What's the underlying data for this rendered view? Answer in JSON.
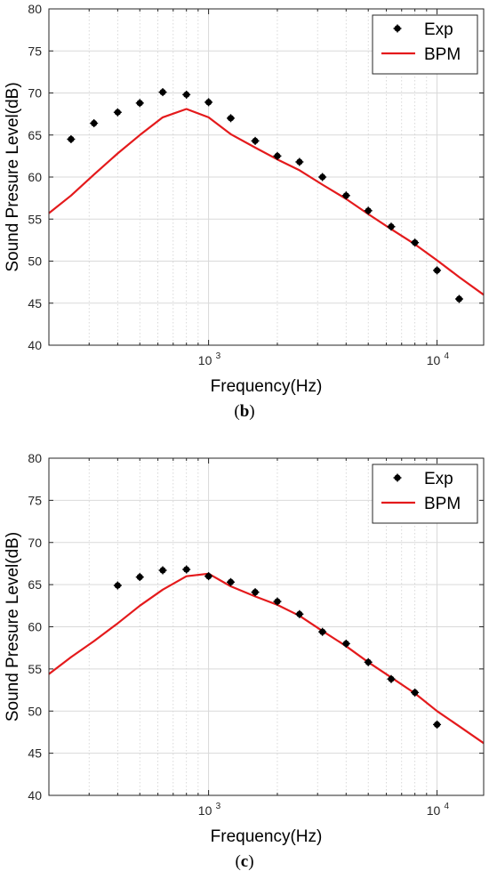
{
  "charts": [
    {
      "id": "b",
      "caption_open": "(",
      "caption_letter": "b",
      "caption_close": ")",
      "chart_data": {
        "type": "scatter",
        "xlabel": "Frequency(Hz)",
        "ylabel": "Sound Presure Level(dB)",
        "xscale": "log",
        "xlim": [
          200,
          16000
        ],
        "ylim": [
          40,
          80
        ],
        "yticks": [
          40,
          45,
          50,
          55,
          60,
          65,
          70,
          75,
          80
        ],
        "xticks": [
          1000,
          10000
        ],
        "grid": true,
        "legend": "top-right",
        "series": [
          {
            "name": "Exp",
            "kind": "markers",
            "color": "#000000",
            "x": [
              250,
              315,
              400,
              500,
              630,
              800,
              1000,
              1250,
              1600,
              2000,
              2500,
              3150,
              4000,
              5000,
              6300,
              8000,
              10000,
              12500
            ],
            "y": [
              64.5,
              66.4,
              67.7,
              68.8,
              70.1,
              69.8,
              68.9,
              67.0,
              64.3,
              62.5,
              61.8,
              60.0,
              57.8,
              56.0,
              54.1,
              52.2,
              48.9,
              45.5
            ]
          },
          {
            "name": "BPM",
            "kind": "line",
            "color": "#e41a1c",
            "x": [
              200,
              250,
              315,
              400,
              500,
              630,
              800,
              1000,
              1250,
              1600,
              2000,
              2500,
              3150,
              4000,
              5000,
              6300,
              8000,
              10000,
              12500,
              16000
            ],
            "y": [
              55.7,
              57.8,
              60.3,
              62.8,
              65.0,
              67.1,
              68.1,
              67.1,
              65.1,
              63.5,
              62.1,
              60.8,
              59.1,
              57.4,
              55.6,
              53.8,
              52.0,
              50.1,
              48.1,
              46.0
            ]
          }
        ]
      }
    },
    {
      "id": "c",
      "caption_open": "(",
      "caption_letter": "c",
      "caption_close": ")",
      "chart_data": {
        "type": "scatter",
        "xlabel": "Frequency(Hz)",
        "ylabel": "Sound Presure Level(dB)",
        "xscale": "log",
        "xlim": [
          200,
          16000
        ],
        "ylim": [
          40,
          80
        ],
        "yticks": [
          40,
          45,
          50,
          55,
          60,
          65,
          70,
          75,
          80
        ],
        "xticks": [
          1000,
          10000
        ],
        "grid": true,
        "legend": "top-right",
        "series": [
          {
            "name": "Exp",
            "kind": "markers",
            "color": "#000000",
            "x": [
              400,
              500,
              630,
              800,
              1000,
              1250,
              1600,
              2000,
              2500,
              3150,
              4000,
              5000,
              6300,
              8000,
              10000
            ],
            "y": [
              64.9,
              65.9,
              66.7,
              66.8,
              66.0,
              65.3,
              64.1,
              63.0,
              61.5,
              59.4,
              58.0,
              55.8,
              53.8,
              52.2,
              48.4
            ]
          },
          {
            "name": "BPM",
            "kind": "line",
            "color": "#e41a1c",
            "x": [
              200,
              250,
              315,
              400,
              500,
              630,
              800,
              1000,
              1250,
              1600,
              2000,
              2500,
              3150,
              4000,
              5000,
              6300,
              8000,
              10000,
              12500,
              16000
            ],
            "y": [
              54.4,
              56.4,
              58.3,
              60.4,
              62.5,
              64.4,
              66.0,
              66.3,
              64.8,
              63.6,
              62.6,
              61.3,
              59.5,
              57.7,
              55.8,
              54.0,
              52.1,
              50.0,
              48.2,
              46.2
            ]
          }
        ]
      }
    }
  ]
}
